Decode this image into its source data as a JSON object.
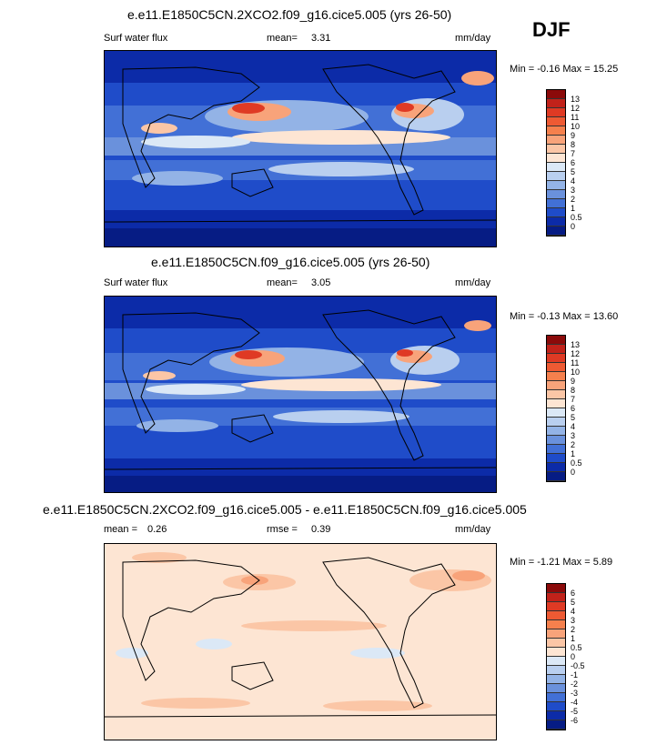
{
  "season_label": "DJF",
  "panels": [
    {
      "title": "e.e11.E1850C5CN.2XCO2.f09_g16.cice5.005 (yrs 26-50)",
      "left_label": "Surf water flux",
      "stat_label": "mean=",
      "stat_value": "3.31",
      "units": "mm/day",
      "minmax_text": "Min =  -0.16 Max =  15.25"
    },
    {
      "title": "e.e11.E1850C5CN.f09_g16.cice5.005 (yrs 26-50)",
      "left_label": "Surf water flux",
      "stat_label": "mean=",
      "stat_value": "3.05",
      "units": "mm/day",
      "minmax_text": "Min =  -0.13 Max =  13.60"
    },
    {
      "title": "e.e11.E1850C5CN.2XCO2.f09_g16.cice5.005 - e.e11.E1850C5CN.f09_g16.cice5.005",
      "mean_label": "mean =",
      "mean_value": "0.26",
      "rmse_label": "rmse =",
      "rmse_value": "0.39",
      "units": "mm/day",
      "minmax_text": "Min = -1.21 Max =  5.89"
    }
  ],
  "chart_data": [
    {
      "type": "heatmap",
      "title": "e.e11.E1850C5CN.2XCO2.f09_g16.cice5.005 (yrs 26-50)",
      "variable": "Surf water flux",
      "units": "mm/day",
      "mean": 3.31,
      "min": -0.16,
      "max": 15.25,
      "colorbar_levels": [
        "13",
        "12",
        "11",
        "10",
        "9",
        "8",
        "7",
        "6",
        "5",
        "4",
        "3",
        "2",
        "1",
        "0.5",
        "0"
      ],
      "colorbar_colors": [
        "#8b0a0a",
        "#c1221a",
        "#df3a24",
        "#ee5a33",
        "#f5804d",
        "#f8a37a",
        "#fbc6a6",
        "#fde5d3",
        "#dbe8f6",
        "#b9cfef",
        "#93b3e6",
        "#6a91dc",
        "#4270d6",
        "#1f4cc9",
        "#0c2ba8",
        "#061c84"
      ]
    },
    {
      "type": "heatmap",
      "title": "e.e11.E1850C5CN.f09_g16.cice5.005 (yrs 26-50)",
      "variable": "Surf water flux",
      "units": "mm/day",
      "mean": 3.05,
      "min": -0.13,
      "max": 13.6,
      "colorbar_levels": [
        "13",
        "12",
        "11",
        "10",
        "9",
        "8",
        "7",
        "6",
        "5",
        "4",
        "3",
        "2",
        "1",
        "0.5",
        "0"
      ],
      "colorbar_colors": [
        "#8b0a0a",
        "#c1221a",
        "#df3a24",
        "#ee5a33",
        "#f5804d",
        "#f8a37a",
        "#fbc6a6",
        "#fde5d3",
        "#dbe8f6",
        "#b9cfef",
        "#93b3e6",
        "#6a91dc",
        "#4270d6",
        "#1f4cc9",
        "#0c2ba8",
        "#061c84"
      ]
    },
    {
      "type": "heatmap",
      "title": "e.e11.E1850C5CN.2XCO2.f09_g16.cice5.005 - e.e11.E1850C5CN.f09_g16.cice5.005",
      "units": "mm/day",
      "mean": 0.26,
      "rmse": 0.39,
      "min": -1.21,
      "max": 5.89,
      "colorbar_levels": [
        "6",
        "5",
        "4",
        "3",
        "2",
        "1",
        "0.5",
        "0",
        "-0.5",
        "-1",
        "-2",
        "-3",
        "-4",
        "-5",
        "-6"
      ],
      "colorbar_colors": [
        "#8b0a0a",
        "#c1221a",
        "#df3a24",
        "#ee5a33",
        "#f5804d",
        "#f8a37a",
        "#fbc6a6",
        "#fde5d3",
        "#dbe8f6",
        "#b9cfef",
        "#93b3e6",
        "#6a91dc",
        "#4270d6",
        "#1f4cc9",
        "#0c2ba8",
        "#061c84"
      ]
    }
  ]
}
